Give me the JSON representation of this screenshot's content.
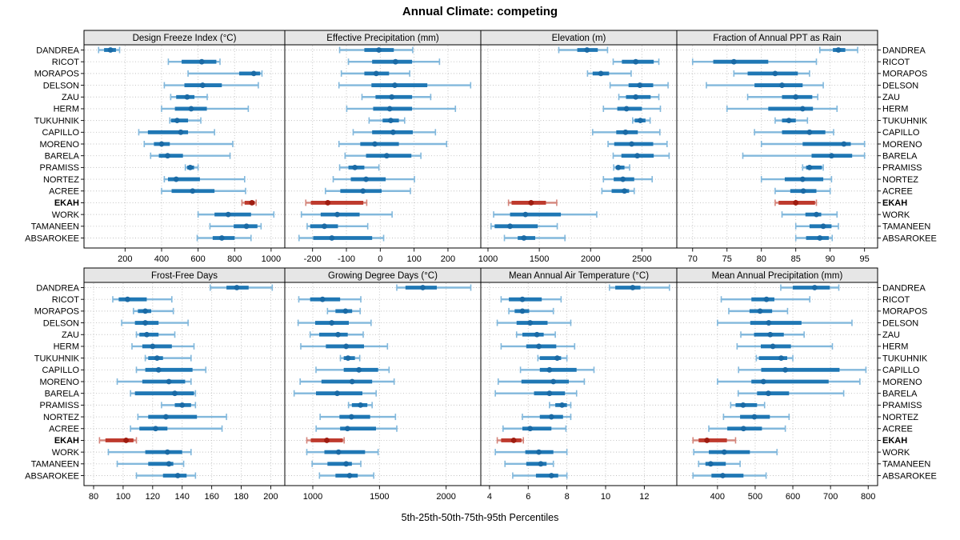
{
  "title": "Annual Climate: competing",
  "footer": "5th-25th-50th-75th-95th Percentiles",
  "sites": [
    "DANDREA",
    "RICOT",
    "MORAPOS",
    "DELSON",
    "ZAU",
    "HERM",
    "TUKUHNIK",
    "CAPILLO",
    "MORENO",
    "BARELA",
    "PRAMISS",
    "NORTEZ",
    "ACREE",
    "EKAH",
    "WORK",
    "TAMANEEN",
    "ABSAROKEE"
  ],
  "highlight_site": "EKAH",
  "colors": {
    "series_dark": "#1f77b4",
    "series_light": "#82b8dc",
    "series_dot": "#1a6aa5",
    "highlight_dark": "#be3a2d",
    "highlight_light": "#d4857b",
    "highlight_dot": "#9f1c10",
    "grid": "#bfbfbf",
    "strip_bg": "#e6e6e6",
    "border": "#000000"
  },
  "chart_data": [
    {
      "type": "dotplot-percentiles",
      "title": "Design Freeze Index (°C)",
      "row": 0,
      "col": 0,
      "xlim": [
        -25,
        1075
      ],
      "xticks": [
        200,
        400,
        600,
        800,
        1000
      ],
      "percentiles": [
        5,
        25,
        50,
        75,
        95
      ],
      "values": [
        [
          55,
          85,
          120,
          150,
          170
        ],
        [
          437,
          510,
          620,
          700,
          720
        ],
        [
          545,
          825,
          905,
          940,
          950
        ],
        [
          415,
          525,
          625,
          730,
          930
        ],
        [
          450,
          480,
          540,
          580,
          650
        ],
        [
          400,
          473,
          562,
          648,
          875
        ],
        [
          445,
          452,
          485,
          545,
          615
        ],
        [
          275,
          325,
          505,
          545,
          690
        ],
        [
          305,
          358,
          400,
          445,
          790
        ],
        [
          340,
          385,
          433,
          517,
          775
        ],
        [
          530,
          540,
          557,
          578,
          600
        ],
        [
          415,
          435,
          480,
          610,
          855
        ],
        [
          400,
          455,
          570,
          690,
          860
        ],
        [
          840,
          855,
          895,
          910,
          918
        ],
        [
          600,
          690,
          765,
          890,
          1015
        ],
        [
          665,
          795,
          865,
          925,
          945
        ],
        [
          595,
          680,
          730,
          800,
          890
        ]
      ]
    },
    {
      "type": "dotplot-percentiles",
      "title": "Effective Precipitation (mm)",
      "row": 0,
      "col": 1,
      "xlim": [
        -282,
        297
      ],
      "xticks": [
        -200,
        -100,
        0,
        100,
        200
      ],
      "percentiles": [
        5,
        25,
        50,
        75,
        95
      ],
      "values": [
        [
          -120,
          -47,
          -4,
          40,
          96
        ],
        [
          -94,
          -24,
          45,
          94,
          175
        ],
        [
          -115,
          -47,
          -12,
          26,
          87
        ],
        [
          -122,
          -26,
          43,
          139,
          267
        ],
        [
          -54,
          -14,
          34,
          94,
          149
        ],
        [
          -99,
          -21,
          28,
          94,
          222
        ],
        [
          -33,
          7,
          31,
          55,
          72
        ],
        [
          -80,
          -24,
          38,
          96,
          163
        ],
        [
          -122,
          -59,
          -16,
          55,
          196
        ],
        [
          -104,
          -42,
          19,
          92,
          120
        ],
        [
          -120,
          -94,
          -75,
          -47,
          -4
        ],
        [
          -139,
          -87,
          -42,
          16,
          101
        ],
        [
          -162,
          -118,
          -51,
          4,
          89
        ],
        [
          -220,
          -205,
          -155,
          -50,
          -40
        ],
        [
          -233,
          -176,
          -127,
          -61,
          35
        ],
        [
          -216,
          -207,
          -165,
          -125,
          -37
        ],
        [
          -240,
          -198,
          -143,
          -24,
          10
        ]
      ]
    },
    {
      "type": "dotplot-percentiles",
      "title": "Elevation (m)",
      "row": 0,
      "col": 2,
      "xlim": [
        930,
        2840
      ],
      "xticks": [
        1000,
        1500,
        2000,
        2500
      ],
      "percentiles": [
        5,
        25,
        50,
        75,
        95
      ],
      "values": [
        [
          1690,
          1870,
          1965,
          2070,
          2165
        ],
        [
          2220,
          2305,
          2440,
          2615,
          2665
        ],
        [
          1970,
          2020,
          2100,
          2180,
          2395
        ],
        [
          2190,
          2370,
          2480,
          2610,
          2755
        ],
        [
          2275,
          2345,
          2440,
          2585,
          2665
        ],
        [
          2125,
          2260,
          2350,
          2500,
          2680
        ],
        [
          2410,
          2430,
          2485,
          2535,
          2580
        ],
        [
          2020,
          2250,
          2340,
          2460,
          2675
        ],
        [
          2170,
          2230,
          2400,
          2610,
          2745
        ],
        [
          2220,
          2300,
          2455,
          2615,
          2765
        ],
        [
          2225,
          2245,
          2270,
          2330,
          2380
        ],
        [
          2125,
          2225,
          2315,
          2425,
          2600
        ],
        [
          2110,
          2205,
          2330,
          2375,
          2425
        ],
        [
          1200,
          1230,
          1420,
          1565,
          1670
        ],
        [
          1055,
          1215,
          1365,
          1710,
          2060
        ],
        [
          1030,
          1065,
          1215,
          1485,
          1675
        ],
        [
          1160,
          1290,
          1350,
          1460,
          1750
        ]
      ]
    },
    {
      "type": "dotplot-percentiles",
      "title": "Fraction of Annual PPT as Rain",
      "row": 0,
      "col": 3,
      "xlim": [
        67.7,
        96.9
      ],
      "xticks": [
        70,
        75,
        80,
        85,
        90,
        95
      ],
      "percentiles": [
        5,
        25,
        50,
        75,
        95
      ],
      "values": [
        [
          88.5,
          90.4,
          91.2,
          92.2,
          94
        ],
        [
          70,
          73,
          76,
          81,
          88
        ],
        [
          76,
          78,
          82,
          85.3,
          87
        ],
        [
          72,
          79,
          83,
          86,
          89
        ],
        [
          78,
          83,
          85,
          87.4,
          88.2
        ],
        [
          75,
          81,
          86,
          87.5,
          91
        ],
        [
          82,
          83,
          84,
          85,
          86.7
        ],
        [
          79,
          83,
          87,
          89.3,
          90.5
        ],
        [
          80,
          86,
          92,
          93,
          95
        ],
        [
          77.3,
          87.3,
          90.2,
          93.2,
          95
        ],
        [
          86,
          86.5,
          87,
          88.8,
          89
        ],
        [
          80,
          83.4,
          86,
          89,
          90.2
        ],
        [
          82,
          84.2,
          86.1,
          88,
          90
        ],
        [
          82,
          82.5,
          85,
          87.8,
          88
        ],
        [
          83,
          86.4,
          88,
          88.7,
          91
        ],
        [
          85,
          87,
          89,
          90.2,
          91.2
        ],
        [
          85,
          86.5,
          88.5,
          89.8,
          90.3
        ]
      ]
    },
    {
      "type": "dotplot-percentiles",
      "title": "Frost-Free Days",
      "row": 1,
      "col": 0,
      "xlim": [
        73.5,
        209.5
      ],
      "xticks": [
        80,
        100,
        120,
        140,
        160,
        180,
        200
      ],
      "percentiles": [
        5,
        25,
        50,
        75,
        95
      ],
      "values": [
        [
          159,
          170,
          177,
          185,
          201
        ],
        [
          93,
          97,
          103,
          116,
          133
        ],
        [
          107,
          110,
          115,
          119,
          134
        ],
        [
          99,
          108,
          115,
          124,
          144
        ],
        [
          109,
          111,
          116,
          124,
          135
        ],
        [
          106,
          113,
          120,
          133,
          148
        ],
        [
          115,
          117,
          123,
          127,
          146
        ],
        [
          109,
          115,
          124,
          147,
          156
        ],
        [
          96,
          113,
          131,
          142,
          146
        ],
        [
          105,
          108,
          135,
          148,
          149
        ],
        [
          126,
          135,
          140,
          146,
          149
        ],
        [
          110,
          117,
          129,
          150,
          170
        ],
        [
          105,
          111,
          122,
          130,
          167
        ],
        [
          84,
          88,
          102,
          107,
          109
        ],
        [
          90,
          115,
          130,
          140,
          146
        ],
        [
          96,
          117,
          131,
          134,
          141
        ],
        [
          109,
          127,
          137,
          143,
          149
        ]
      ]
    },
    {
      "type": "dotplot-percentiles",
      "title": "Growing Degree Days (°C)",
      "row": 1,
      "col": 1,
      "xlim": [
        790,
        2260
      ],
      "xticks": [
        1000,
        1500,
        2000
      ],
      "percentiles": [
        5,
        25,
        50,
        75,
        95
      ],
      "values": [
        [
          1630,
          1695,
          1825,
          1930,
          2185
        ],
        [
          895,
          980,
          1073,
          1205,
          1360
        ],
        [
          1110,
          1170,
          1245,
          1295,
          1355
        ],
        [
          890,
          1018,
          1142,
          1270,
          1437
        ],
        [
          980,
          1048,
          1189,
          1262,
          1378
        ],
        [
          910,
          1098,
          1250,
          1384,
          1560
        ],
        [
          1207,
          1232,
          1264,
          1316,
          1352
        ],
        [
          1024,
          1232,
          1346,
          1490,
          1572
        ],
        [
          905,
          1065,
          1295,
          1445,
          1610
        ],
        [
          860,
          1024,
          1183,
          1372,
          1475
        ],
        [
          1268,
          1293,
          1358,
          1409,
          1445
        ],
        [
          1055,
          1200,
          1290,
          1430,
          1620
        ],
        [
          1025,
          1205,
          1260,
          1474,
          1630
        ],
        [
          955,
          985,
          1105,
          1225,
          1235
        ],
        [
          955,
          1087,
          1193,
          1392,
          1490
        ],
        [
          995,
          1110,
          1250,
          1293,
          1360
        ],
        [
          1050,
          1170,
          1276,
          1337,
          1457
        ]
      ]
    },
    {
      "type": "dotplot-percentiles",
      "title": "Mean Annual Air Temperature (°C)",
      "row": 1,
      "col": 2,
      "xlim": [
        3.55,
        13.68
      ],
      "xticks": [
        4,
        6,
        8,
        10,
        12
      ],
      "percentiles": [
        5,
        25,
        50,
        75,
        95
      ],
      "values": [
        [
          10.2,
          10.5,
          11.4,
          11.8,
          13.3
        ],
        [
          4.6,
          5.0,
          5.7,
          6.7,
          7.7
        ],
        [
          5.0,
          5.3,
          5.7,
          6.05,
          7.3
        ],
        [
          4.4,
          5.4,
          6.1,
          7.0,
          8.2
        ],
        [
          5.4,
          5.7,
          6.45,
          6.8,
          7.4
        ],
        [
          4.6,
          5.9,
          6.55,
          7.45,
          8.4
        ],
        [
          6.5,
          6.6,
          7.5,
          7.7,
          8.0
        ],
        [
          5.6,
          6.6,
          7.1,
          8.5,
          9.4
        ],
        [
          4.45,
          5.65,
          7.3,
          8.1,
          8.9
        ],
        [
          4.3,
          6.3,
          7.1,
          7.9,
          8.5
        ],
        [
          7.1,
          7.4,
          7.75,
          8.0,
          8.2
        ],
        [
          5.7,
          6.6,
          7.2,
          7.8,
          8.2
        ],
        [
          4.7,
          5.7,
          6.1,
          7.2,
          7.95
        ],
        [
          4.4,
          4.6,
          5.25,
          5.65,
          5.75
        ],
        [
          4.3,
          5.85,
          6.55,
          7.3,
          8.0
        ],
        [
          4.8,
          5.9,
          6.65,
          6.95,
          7.3
        ],
        [
          5.2,
          6.4,
          7.2,
          7.55,
          8.0
        ]
      ]
    },
    {
      "type": "dotplot-percentiles",
      "title": "Mean Annual Precipitation (mm)",
      "row": 1,
      "col": 3,
      "xlim": [
        292,
        825
      ],
      "xticks": [
        400,
        500,
        600,
        700,
        800
      ],
      "percentiles": [
        5,
        25,
        50,
        75,
        95
      ],
      "values": [
        [
          568,
          600,
          658,
          698,
          722
        ],
        [
          410,
          490,
          530,
          551,
          645
        ],
        [
          430,
          485,
          513,
          545,
          586
        ],
        [
          400,
          487,
          536,
          623,
          757
        ],
        [
          462,
          497,
          540,
          576,
          630
        ],
        [
          452,
          515,
          547,
          595,
          705
        ],
        [
          503,
          510,
          569,
          585,
          600
        ],
        [
          456,
          516,
          580,
          724,
          794
        ],
        [
          400,
          490,
          522,
          695,
          778
        ],
        [
          455,
          505,
          535,
          590,
          735
        ],
        [
          435,
          448,
          468,
          505,
          525
        ],
        [
          416,
          460,
          498,
          539,
          590
        ],
        [
          377,
          426,
          469,
          518,
          580
        ],
        [
          335,
          350,
          372,
          425,
          448
        ],
        [
          337,
          377,
          418,
          486,
          558
        ],
        [
          350,
          368,
          382,
          422,
          460
        ],
        [
          335,
          384,
          414,
          469,
          529
        ]
      ]
    }
  ]
}
